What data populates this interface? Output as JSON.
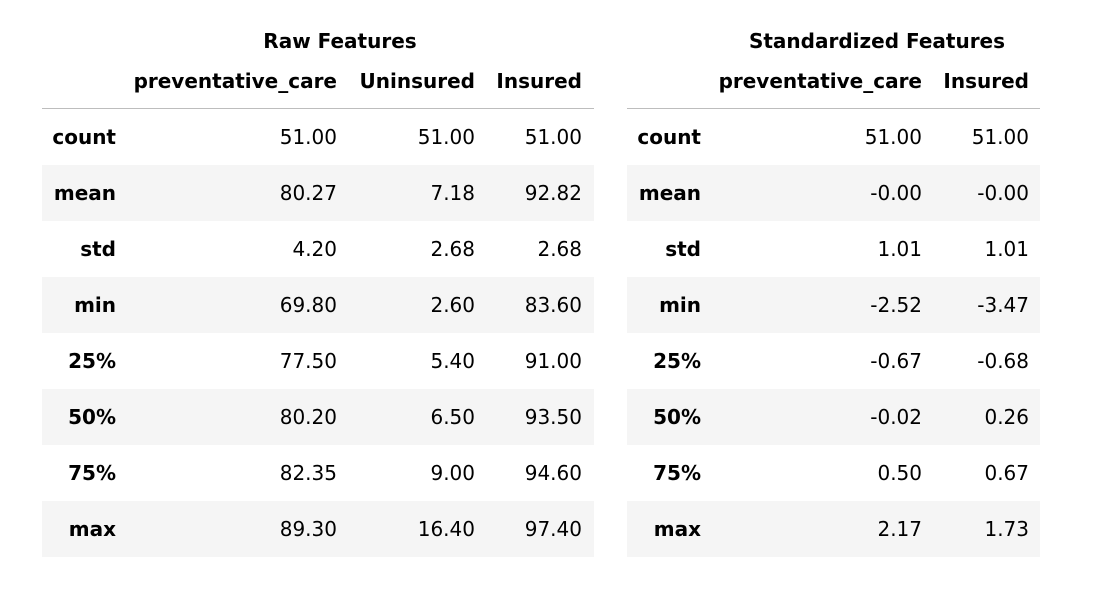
{
  "raw_features": {
    "caption": "Raw Features",
    "columns": [
      "preventative_care",
      "Uninsured",
      "Insured"
    ],
    "rows": [
      {
        "stat": "count",
        "values": [
          "51.00",
          "51.00",
          "51.00"
        ]
      },
      {
        "stat": "mean",
        "values": [
          "80.27",
          "7.18",
          "92.82"
        ]
      },
      {
        "stat": "std",
        "values": [
          "4.20",
          "2.68",
          "2.68"
        ]
      },
      {
        "stat": "min",
        "values": [
          "69.80",
          "2.60",
          "83.60"
        ]
      },
      {
        "stat": "25%",
        "values": [
          "77.50",
          "5.40",
          "91.00"
        ]
      },
      {
        "stat": "50%",
        "values": [
          "80.20",
          "6.50",
          "93.50"
        ]
      },
      {
        "stat": "75%",
        "values": [
          "82.35",
          "9.00",
          "94.60"
        ]
      },
      {
        "stat": "max",
        "values": [
          "89.30",
          "16.40",
          "97.40"
        ]
      }
    ]
  },
  "standardized_features": {
    "caption": "Standardized Features",
    "columns": [
      "preventative_care",
      "Insured"
    ],
    "rows": [
      {
        "stat": "count",
        "values": [
          "51.00",
          "51.00"
        ]
      },
      {
        "stat": "mean",
        "values": [
          "-0.00",
          "-0.00"
        ]
      },
      {
        "stat": "std",
        "values": [
          "1.01",
          "1.01"
        ]
      },
      {
        "stat": "min",
        "values": [
          "-2.52",
          "-3.47"
        ]
      },
      {
        "stat": "25%",
        "values": [
          "-0.67",
          "-0.68"
        ]
      },
      {
        "stat": "50%",
        "values": [
          "-0.02",
          "0.26"
        ]
      },
      {
        "stat": "75%",
        "values": [
          "0.50",
          "0.67"
        ]
      },
      {
        "stat": "max",
        "values": [
          "2.17",
          "1.73"
        ]
      }
    ]
  },
  "colors": {
    "stripe": "#f5f5f5",
    "header_rule": "#bdbdbd",
    "text": "#000000"
  }
}
